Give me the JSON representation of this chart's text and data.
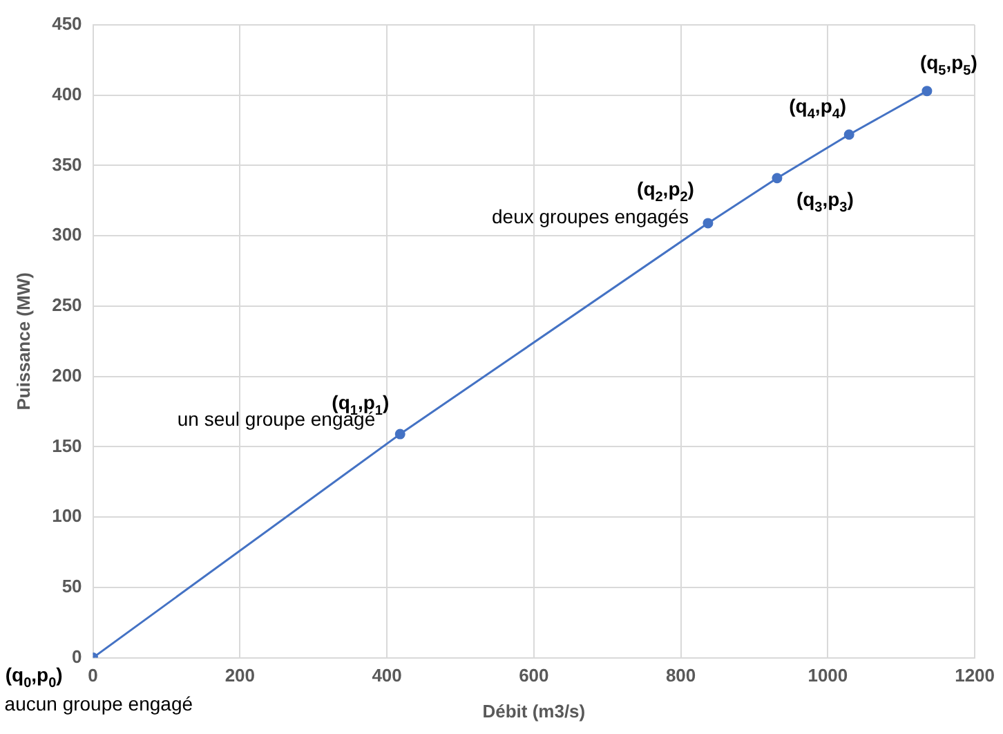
{
  "chart_data": {
    "type": "line",
    "xlabel": "Débit (m3/s)",
    "ylabel": "Puissance (MW)",
    "x": [
      0,
      418,
      837,
      931,
      1029,
      1135
    ],
    "series": [
      {
        "color": "#4472c4",
        "values": [
          0,
          159,
          309,
          341,
          372,
          403
        ]
      }
    ],
    "xlim": [
      0,
      1200
    ],
    "xticks": [
      0,
      200,
      400,
      600,
      800,
      1000,
      1200
    ],
    "ylim": [
      0,
      450
    ],
    "yticks": [
      0,
      50,
      100,
      150,
      200,
      250,
      300,
      350,
      400,
      450
    ],
    "grid": true,
    "legend": false,
    "marker": "circle",
    "line_style": "solid",
    "annotations": [
      {
        "text": "(q$_{0}$,p$_{0}$)",
        "x": 0,
        "y": 0
      },
      {
        "text": "aucun groupe engagé",
        "x": 0,
        "y": 0
      },
      {
        "text": "(q$_{1}$,p$_{1}$)",
        "x": 418,
        "y": 159
      },
      {
        "text": "un seul groupe engagé",
        "x": 418,
        "y": 159
      },
      {
        "text": "(q$_{2}$,p$_{2}$)",
        "x": 837,
        "y": 309
      },
      {
        "text": "deux groupes engagés",
        "x": 837,
        "y": 309
      },
      {
        "text": "(q$_{3}$,p$_{3}$)",
        "x": 931,
        "y": 341
      },
      {
        "text": "(q$_{4}$,p$_{4}$)",
        "x": 1029,
        "y": 372
      },
      {
        "text": "(q$_{5}$,p$_{5}$)",
        "x": 1135,
        "y": 403
      }
    ]
  }
}
